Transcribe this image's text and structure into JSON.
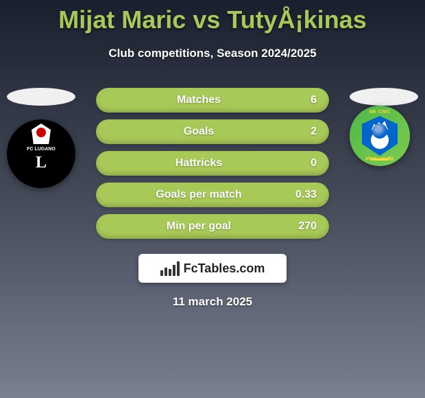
{
  "title": "Mijat Maric vs TutyÅ¡kinas",
  "subtitle": "Club competitions, Season 2024/2025",
  "team_left": {
    "name": "FC Lugano",
    "badge_bg": "#000000",
    "shield_bg": "#ffffff",
    "accent": "#cc0000",
    "label_top": "FC LUGANO",
    "monogram": "L"
  },
  "team_right": {
    "name": "NK CMC Publikum",
    "badge_bg_start": "#4db848",
    "badge_bg_end": "#7dcc4f",
    "shield_bg": "#0066cc",
    "accent": "#ffd93d",
    "label_top": "NK CMC",
    "label_bottom": "PUBLIKUM"
  },
  "stats": [
    {
      "label": "Matches",
      "value": "6"
    },
    {
      "label": "Goals",
      "value": "2"
    },
    {
      "label": "Hattricks",
      "value": "0"
    },
    {
      "label": "Goals per match",
      "value": "0.33"
    },
    {
      "label": "Min per goal",
      "value": "270"
    }
  ],
  "brand": "FcTables.com",
  "date": "11 march 2025",
  "styling": {
    "pill_bg": "#a7c957",
    "pill_text": "#ffffff",
    "pill_radius": 20,
    "pill_height": 36,
    "title_color": "#a7c957",
    "subtitle_color": "#ffffff",
    "bg_gradient": [
      "#1a1f2e",
      "#4a4f5e",
      "#7a8090"
    ],
    "brand_box_bg": "#ffffff",
    "stat_font_size": 16,
    "title_font_size": 36
  }
}
